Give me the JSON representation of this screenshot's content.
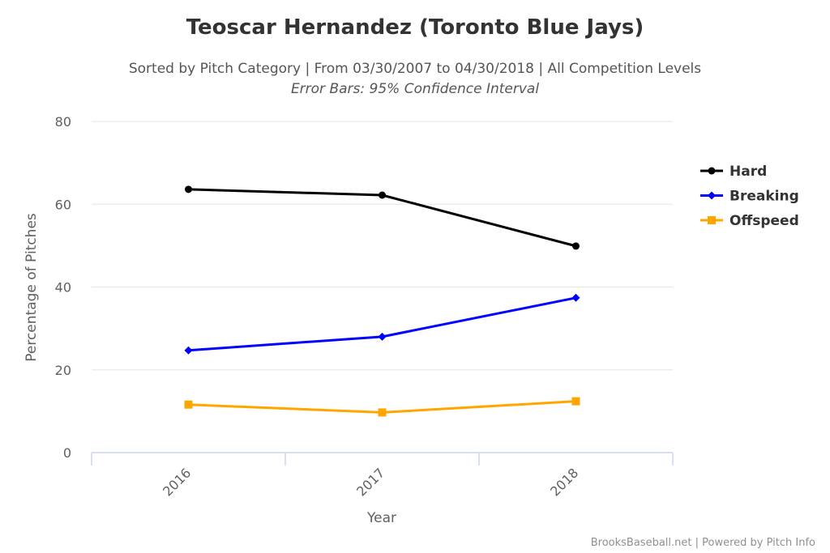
{
  "chart_data": {
    "type": "line",
    "title": "Teoscar Hernandez (Toronto Blue Jays)",
    "subtitle": "Sorted by Pitch Category | From 03/30/2007 to 04/30/2018 | All Competition Levels",
    "subtitle2": "Error Bars: 95% Confidence Interval",
    "xlabel": "Year",
    "ylabel": "Percentage of Pitches",
    "categories": [
      "2016",
      "2017",
      "2018"
    ],
    "yticks": [
      "0",
      "20",
      "40",
      "60",
      "80"
    ],
    "ylim": [
      0,
      80
    ],
    "grid": true,
    "legend_position": "right",
    "series": [
      {
        "name": "Hard",
        "color": "#000000",
        "marker": "circle",
        "values": [
          63.6,
          62.2,
          49.9
        ]
      },
      {
        "name": "Breaking",
        "color": "#0000ff",
        "marker": "diamond",
        "values": [
          24.7,
          28.0,
          37.4
        ]
      },
      {
        "name": "Offspeed",
        "color": "#ffa500",
        "marker": "square",
        "values": [
          11.6,
          9.7,
          12.4
        ]
      }
    ],
    "credits": "BrooksBaseball.net | Powered by Pitch Info"
  }
}
